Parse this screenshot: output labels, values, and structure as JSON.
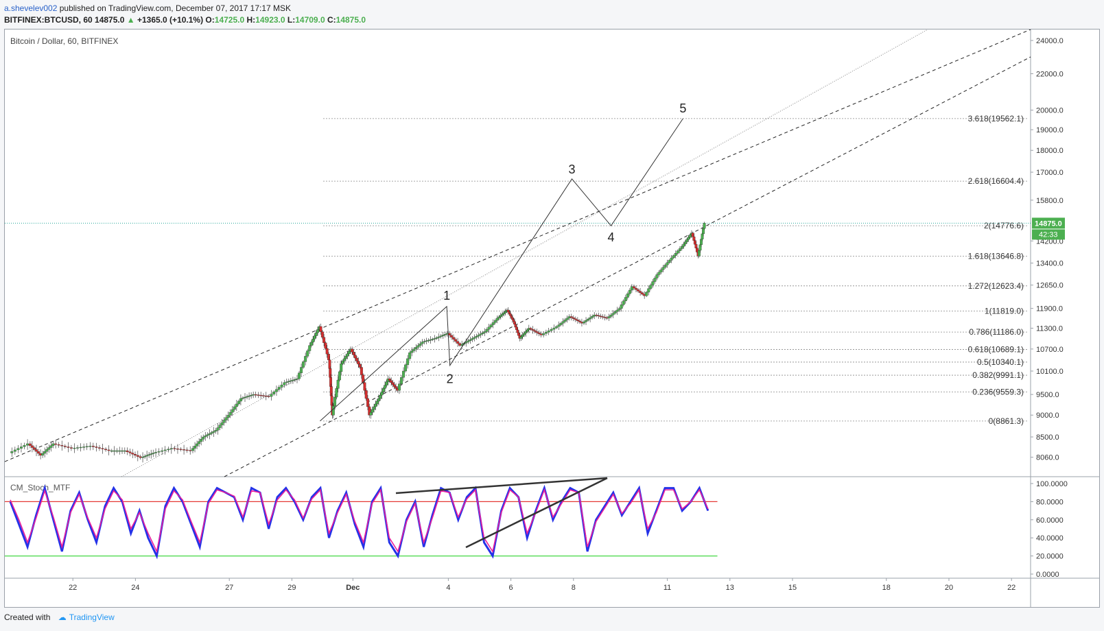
{
  "header": {
    "user": "a.shevelev002",
    "published": "published on TradingView.com, December 07, 2017 17:17 MSK",
    "symbol": "BITFINEX:BTCUSD, 60",
    "price": "14875.0",
    "change_arrow": "▲",
    "change": "+1365.0 (+10.1%)",
    "o_label": "O:",
    "o": "14725.0",
    "h_label": "H:",
    "h": "14923.0",
    "l_label": "L:",
    "l": "14709.0",
    "c_label": "C:",
    "c": "14875.0"
  },
  "chart_title": "Bitcoin / Dollar, 60, BITFINEX",
  "indicator_label": "CM_Stoch_MTF",
  "footer": {
    "created": "Created with",
    "brand": "TradingView"
  },
  "colors": {
    "up": "#4caf50",
    "down": "#d32f2f",
    "zone": "#fff9c4",
    "zone_border": "#9e9e9e",
    "stoch_main": "#2432e8",
    "stoch_signal": "#e91e9c",
    "level_hi": "#e53935",
    "level_lo": "#43d843",
    "last_price": "#26a69a"
  },
  "chart_data": [
    {
      "type": "line",
      "title": "Bitcoin / Dollar, 60, BITFINEX",
      "scale": "log",
      "y_ticks": [
        "24000.0",
        "22000.0",
        "20000.0",
        "19000.0",
        "18000.0",
        "17000.0",
        "15800.0",
        "14200.0",
        "13400.0",
        "12650.0",
        "11900.0",
        "11300.0",
        "10700.0",
        "10100.0",
        "9500.0",
        "9000.0",
        "8500.0",
        "8060.0"
      ],
      "x_ticks": [
        "22",
        "24",
        "27",
        "29",
        "Dec",
        "4",
        "6",
        "8",
        "11",
        "13",
        "15",
        "18",
        "20",
        "22"
      ],
      "ylim": [
        7660,
        24700
      ],
      "last_price": {
        "value": "14875.0",
        "countdown": "42:33"
      },
      "fib_levels": [
        {
          "label": "3.618(19562.1)",
          "value": 19562.1
        },
        {
          "label": "2.618(16604.4)",
          "value": 16604.4
        },
        {
          "label": "2(14776.6)",
          "value": 14776.6
        },
        {
          "label": "1.618(13646.8)",
          "value": 13646.8
        },
        {
          "label": "1.272(12623.4)",
          "value": 12623.4
        },
        {
          "label": "1(11819.0)",
          "value": 11819.0
        },
        {
          "label": "0.786(11186.0)",
          "value": 11186.0
        },
        {
          "label": "0.618(10689.1)",
          "value": 10689.1
        },
        {
          "label": "0.5(10340.1)",
          "value": 10340.1
        },
        {
          "label": "0.382(9991.1)",
          "value": 9991.1
        },
        {
          "label": "0.236(9559.3)",
          "value": 9559.3
        },
        {
          "label": "0(8861.3)",
          "value": 8861.3
        }
      ],
      "zone": {
        "from_x": 28.4,
        "to_x": 23.55,
        "low": 8861.3,
        "high": 10050
      },
      "wave_labels": [
        {
          "label": "1",
          "x": 3.95,
          "value": 12000
        },
        {
          "label": "2",
          "x": 4.05,
          "value": 10150
        },
        {
          "label": "3",
          "x": 7.95,
          "value": 16700
        },
        {
          "label": "4",
          "x": 9.2,
          "value": 14700
        },
        {
          "label": "5",
          "x": 11.5,
          "value": 19600
        }
      ],
      "wave_path_comment": "",
      "wave_path": [
        {
          "x": 29.9,
          "value": 8861.3
        },
        {
          "x": 3.95,
          "value": 11960
        },
        {
          "x": 4.05,
          "value": 10250
        },
        {
          "x": 7.95,
          "value": 16704
        },
        {
          "x": 9.2,
          "value": 14776
        },
        {
          "x": 11.5,
          "value": 19562
        }
      ],
      "price_path": [
        [
          20.0,
          8150
        ],
        [
          20.6,
          8350
        ],
        [
          21.0,
          8100
        ],
        [
          21.4,
          8350
        ],
        [
          22.0,
          8250
        ],
        [
          22.6,
          8300
        ],
        [
          23.2,
          8200
        ],
        [
          23.7,
          8200
        ],
        [
          24.2,
          8050
        ],
        [
          24.6,
          8150
        ],
        [
          25.2,
          8250
        ],
        [
          25.8,
          8200
        ],
        [
          26.2,
          8500
        ],
        [
          26.6,
          8650
        ],
        [
          27.0,
          9000
        ],
        [
          27.4,
          9400
        ],
        [
          27.8,
          9500
        ],
        [
          28.3,
          9450
        ],
        [
          28.8,
          9800
        ],
        [
          29.2,
          9900
        ],
        [
          29.6,
          10800
        ],
        [
          29.9,
          11350
        ],
        [
          30.2,
          10400
        ],
        [
          30.3,
          9000
        ],
        [
          30.6,
          10300
        ],
        [
          30.9,
          10700
        ],
        [
          31.2,
          10200
        ],
        [
          31.5,
          9000
        ],
        [
          31.8,
          9400
        ],
        [
          32.1,
          9900
        ],
        [
          32.4,
          9600
        ],
        [
          32.8,
          10600
        ],
        [
          33.2,
          10900
        ],
        [
          33.6,
          11000
        ],
        [
          34.0,
          11150
        ],
        [
          34.4,
          10800
        ],
        [
          34.8,
          11000
        ],
        [
          35.2,
          11200
        ],
        [
          35.6,
          11600
        ],
        [
          35.9,
          11850
        ],
        [
          36.1,
          11500
        ],
        [
          36.3,
          11000
        ],
        [
          36.6,
          11300
        ],
        [
          37.0,
          11100
        ],
        [
          37.5,
          11350
        ],
        [
          37.9,
          11650
        ],
        [
          38.3,
          11450
        ],
        [
          38.7,
          11700
        ],
        [
          39.1,
          11600
        ],
        [
          39.5,
          11900
        ],
        [
          39.9,
          12600
        ],
        [
          40.3,
          12300
        ],
        [
          40.7,
          13000
        ],
        [
          41.1,
          13500
        ],
        [
          41.5,
          14000
        ],
        [
          41.8,
          14500
        ],
        [
          42.0,
          13650
        ],
        [
          42.2,
          14875
        ]
      ],
      "x_axis_note": ""
    },
    {
      "type": "line",
      "title": "CM_Stoch_MTF",
      "y_ticks": [
        "100.0000",
        "80.0000",
        "60.0000",
        "40.0000",
        "20.0000",
        "0.0000"
      ],
      "ylim": [
        0,
        100
      ],
      "levels": [
        80,
        20
      ],
      "series": [
        {
          "values": [
            80,
            55,
            30,
            65,
            95,
            60,
            25,
            70,
            90,
            60,
            35,
            75,
            95,
            80,
            45,
            70,
            40,
            20,
            75,
            95,
            80,
            55,
            30,
            80,
            95,
            90,
            85,
            60,
            95,
            90,
            50,
            85,
            95,
            80,
            60,
            85,
            95,
            40,
            70,
            90,
            55,
            30,
            80,
            95,
            35,
            20,
            60,
            80,
            30,
            65,
            95,
            90,
            60,
            85,
            95,
            35,
            20,
            70,
            95,
            85,
            40,
            70,
            95,
            60,
            80,
            95,
            90,
            25,
            60,
            75,
            90,
            65,
            80,
            95,
            45,
            70,
            95,
            95,
            70,
            80,
            95,
            70
          ]
        },
        {
          "values": [
            82,
            60,
            35,
            62,
            92,
            63,
            30,
            68,
            88,
            62,
            40,
            72,
            92,
            82,
            50,
            68,
            45,
            25,
            72,
            92,
            82,
            58,
            35,
            78,
            93,
            90,
            86,
            63,
            92,
            90,
            55,
            82,
            93,
            82,
            62,
            83,
            93,
            45,
            68,
            88,
            58,
            35,
            78,
            93,
            40,
            25,
            58,
            78,
            35,
            62,
            92,
            90,
            63,
            83,
            93,
            40,
            25,
            68,
            93,
            85,
            45,
            68,
            93,
            63,
            78,
            93,
            90,
            30,
            58,
            73,
            88,
            67,
            78,
            93,
            50,
            68,
            93,
            93,
            72,
            80,
            93,
            72
          ]
        }
      ]
    }
  ]
}
